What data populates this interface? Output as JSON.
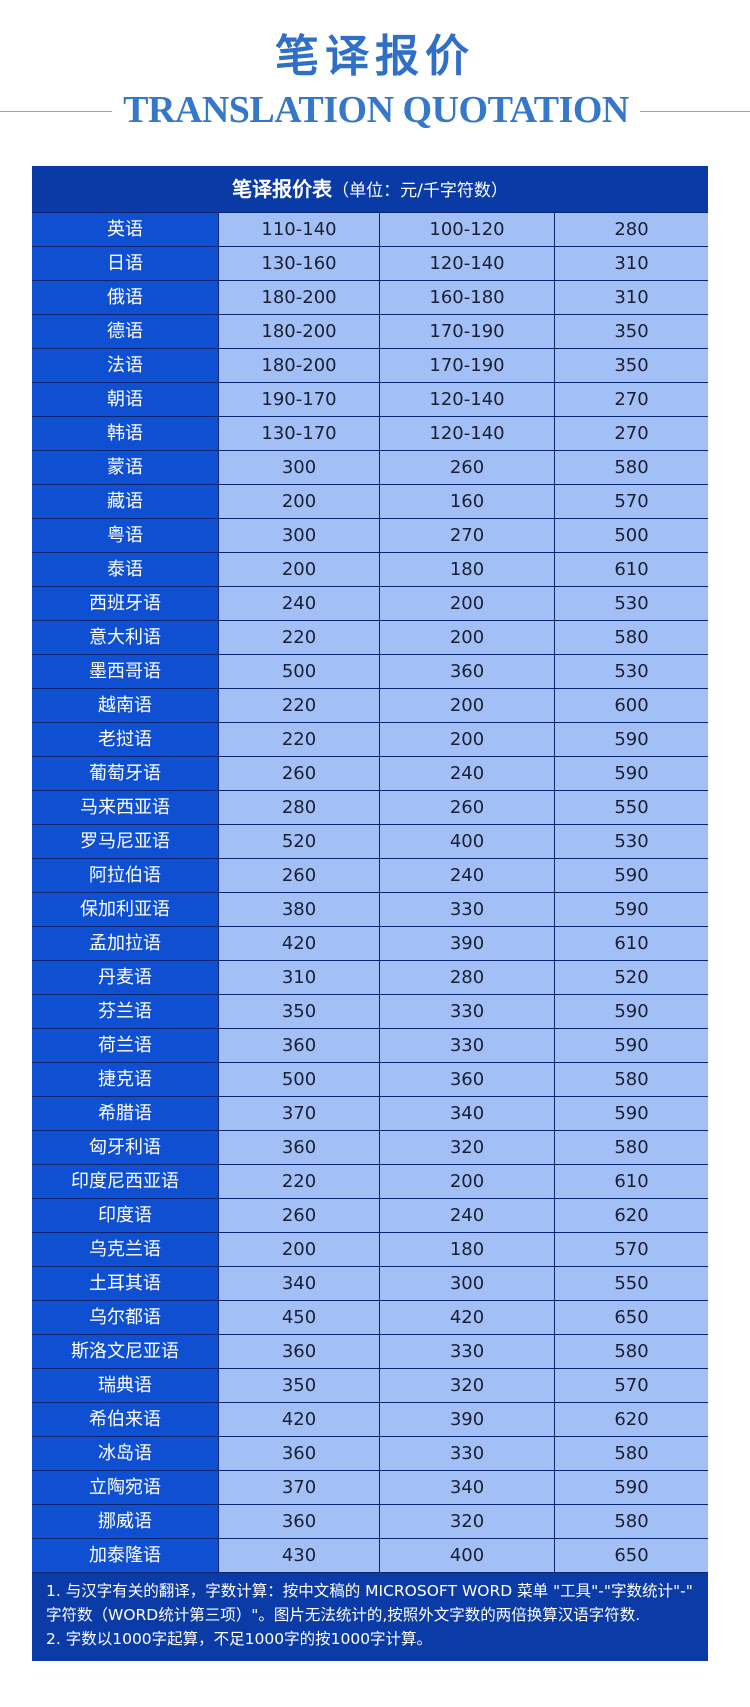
{
  "header": {
    "title": "笔译报价",
    "subtitle": "TRANSLATION QUOTATION"
  },
  "table": {
    "caption": "笔译报价表",
    "unit": "（单位：元/千字符数）",
    "rows": [
      [
        "英语",
        "110-140",
        "100-120",
        "280"
      ],
      [
        "日语",
        "130-160",
        "120-140",
        "310"
      ],
      [
        "俄语",
        "180-200",
        "160-180",
        "310"
      ],
      [
        "德语",
        "180-200",
        "170-190",
        "350"
      ],
      [
        "法语",
        "180-200",
        "170-190",
        "350"
      ],
      [
        "朝语",
        "190-170",
        "120-140",
        "270"
      ],
      [
        "韩语",
        "130-170",
        "120-140",
        "270"
      ],
      [
        "蒙语",
        "300",
        "260",
        "580"
      ],
      [
        "藏语",
        "200",
        "160",
        "570"
      ],
      [
        "粤语",
        "300",
        "270",
        "500"
      ],
      [
        "泰语",
        "200",
        "180",
        "610"
      ],
      [
        "西班牙语",
        "240",
        "200",
        "530"
      ],
      [
        "意大利语",
        "220",
        "200",
        "580"
      ],
      [
        "墨西哥语",
        "500",
        "360",
        "530"
      ],
      [
        "越南语",
        "220",
        "200",
        "600"
      ],
      [
        "老挝语",
        "220",
        "200",
        "590"
      ],
      [
        "葡萄牙语",
        "260",
        "240",
        "590"
      ],
      [
        "马来西亚语",
        "280",
        "260",
        "550"
      ],
      [
        "罗马尼亚语",
        "520",
        "400",
        "530"
      ],
      [
        "阿拉伯语",
        "260",
        "240",
        "590"
      ],
      [
        "保加利亚语",
        "380",
        "330",
        "590"
      ],
      [
        "孟加拉语",
        "420",
        "390",
        "610"
      ],
      [
        "丹麦语",
        "310",
        "280",
        "520"
      ],
      [
        "芬兰语",
        "350",
        "330",
        "590"
      ],
      [
        "荷兰语",
        "360",
        "330",
        "590"
      ],
      [
        "捷克语",
        "500",
        "360",
        "580"
      ],
      [
        "希腊语",
        "370",
        "340",
        "590"
      ],
      [
        "匈牙利语",
        "360",
        "320",
        "580"
      ],
      [
        "印度尼西亚语",
        "220",
        "200",
        "610"
      ],
      [
        "印度语",
        "260",
        "240",
        "620"
      ],
      [
        "乌克兰语",
        "200",
        "180",
        "570"
      ],
      [
        "土耳其语",
        "340",
        "300",
        "550"
      ],
      [
        "乌尔都语",
        "450",
        "420",
        "650"
      ],
      [
        "斯洛文尼亚语",
        "360",
        "330",
        "580"
      ],
      [
        "瑞典语",
        "350",
        "320",
        "570"
      ],
      [
        "希伯来语",
        "420",
        "390",
        "620"
      ],
      [
        "冰岛语",
        "360",
        "330",
        "580"
      ],
      [
        "立陶宛语",
        "370",
        "340",
        "590"
      ],
      [
        "挪威语",
        "360",
        "320",
        "580"
      ],
      [
        "加泰隆语",
        "430",
        "400",
        "650"
      ]
    ]
  },
  "notes": [
    "1. 与汉字有关的翻译，字数计算：按中文稿的 MICROSOFT WORD 菜单 \"工具\"-\"字数统计\"-\" 字符数（WORD统计第三项）\"。图片无法统计的,按照外文字数的两倍换算汉语字符数.",
    "2. 字数以1000字起算，不足1000字的按1000字计算。"
  ],
  "colors": {
    "title": "#2f6fc6",
    "header_bg": "#0a3aa6",
    "language_col_bg": "#0f50d2",
    "cell_bg": "#a3c0f6"
  }
}
